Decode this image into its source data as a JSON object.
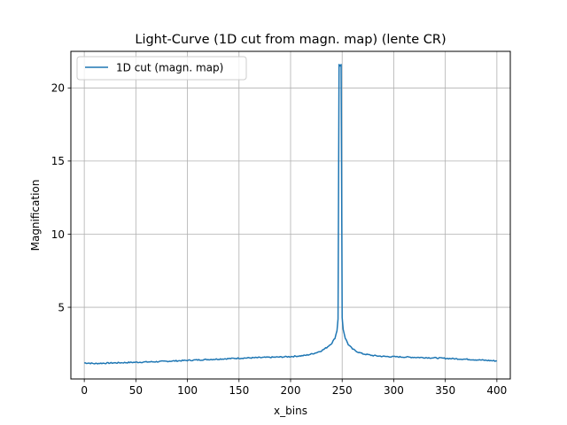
{
  "chart_data": {
    "type": "line",
    "title": "Light-Curve (1D cut from magn. map) (lente CR)",
    "xlabel": "x_bins",
    "ylabel": "Magnification",
    "xlim": [
      -13,
      413
    ],
    "ylim": [
      0.1,
      22.5
    ],
    "xticks": [
      0,
      50,
      100,
      150,
      200,
      250,
      300,
      350,
      400
    ],
    "yticks": [
      5,
      10,
      15,
      20
    ],
    "grid": true,
    "legend_position": "upper-left",
    "color": "#1f77b4",
    "series": [
      {
        "name": "1D cut (magn. map)",
        "points": [
          [
            0,
            1.2
          ],
          [
            5,
            1.18
          ],
          [
            10,
            1.15
          ],
          [
            15,
            1.17
          ],
          [
            20,
            1.18
          ],
          [
            30,
            1.2
          ],
          [
            40,
            1.22
          ],
          [
            50,
            1.24
          ],
          [
            60,
            1.26
          ],
          [
            70,
            1.28
          ],
          [
            80,
            1.31
          ],
          [
            90,
            1.34
          ],
          [
            100,
            1.37
          ],
          [
            110,
            1.4
          ],
          [
            120,
            1.43
          ],
          [
            130,
            1.46
          ],
          [
            140,
            1.49
          ],
          [
            150,
            1.52
          ],
          [
            160,
            1.54
          ],
          [
            170,
            1.56
          ],
          [
            180,
            1.58
          ],
          [
            190,
            1.6
          ],
          [
            200,
            1.63
          ],
          [
            210,
            1.68
          ],
          [
            215,
            1.72
          ],
          [
            220,
            1.8
          ],
          [
            225,
            1.9
          ],
          [
            230,
            2.03
          ],
          [
            235,
            2.25
          ],
          [
            240,
            2.55
          ],
          [
            243,
            2.9
          ],
          [
            245,
            3.4
          ],
          [
            246,
            4.2
          ],
          [
            247,
            21.6
          ],
          [
            248,
            21.5
          ],
          [
            249,
            21.6
          ],
          [
            250,
            4.3
          ],
          [
            251,
            3.5
          ],
          [
            253,
            2.9
          ],
          [
            256,
            2.45
          ],
          [
            260,
            2.15
          ],
          [
            265,
            1.95
          ],
          [
            270,
            1.82
          ],
          [
            280,
            1.7
          ],
          [
            290,
            1.64
          ],
          [
            300,
            1.62
          ],
          [
            310,
            1.6
          ],
          [
            320,
            1.58
          ],
          [
            330,
            1.56
          ],
          [
            340,
            1.54
          ],
          [
            350,
            1.51
          ],
          [
            360,
            1.48
          ],
          [
            370,
            1.45
          ],
          [
            380,
            1.41
          ],
          [
            390,
            1.37
          ],
          [
            400,
            1.33
          ]
        ]
      }
    ]
  }
}
